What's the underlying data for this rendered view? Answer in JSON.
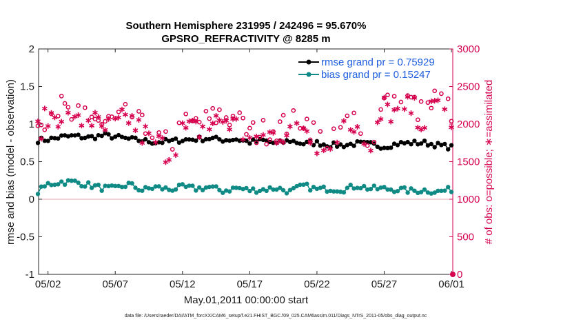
{
  "chart_data": {
    "type": "line",
    "title_line1": "Southern Hemisphere 231995 / 242496 = 95.670%",
    "title_line2": "GPSRO_REFRACTIVITY @ 8285 m",
    "xlabel": "May.01,2011 00:00:00 start",
    "ylabel_left": "rmse and bias (model - observation)",
    "ylabel_right": "# of obs: o=possible; ∗=assimilated",
    "ylim_left": [
      -1,
      2
    ],
    "ylim_right": [
      0,
      3000
    ],
    "xlim_days": [
      0.3,
      31.1
    ],
    "x_ticks": [
      {
        "day": 1.0,
        "label": "05/02"
      },
      {
        "day": 6.0,
        "label": "05/07"
      },
      {
        "day": 11.0,
        "label": "05/12"
      },
      {
        "day": 16.0,
        "label": "05/17"
      },
      {
        "day": 21.0,
        "label": "05/22"
      },
      {
        "day": 26.0,
        "label": "05/27"
      },
      {
        "day": 31.0,
        "label": "06/01"
      }
    ],
    "y_ticks_left": [
      {
        "v": 2,
        "label": "2"
      },
      {
        "v": 1.5,
        "label": "1.5"
      },
      {
        "v": 1,
        "label": "1"
      },
      {
        "v": 0.5,
        "label": "0.5"
      },
      {
        "v": 0,
        "label": "0"
      },
      {
        "v": -0.5,
        "label": "-0.5"
      },
      {
        "v": -1,
        "label": "-1"
      }
    ],
    "y_ticks_right": [
      {
        "v": 3000,
        "label": "3000"
      },
      {
        "v": 2500,
        "label": "2500"
      },
      {
        "v": 2000,
        "label": "2000"
      },
      {
        "v": 1500,
        "label": "1500"
      },
      {
        "v": 1000,
        "label": "1000"
      },
      {
        "v": 500,
        "label": "500"
      },
      {
        "v": 0,
        "label": "0"
      }
    ],
    "legend": [
      {
        "name": "rmse grand pr = 0.75929",
        "color": "#000000"
      },
      {
        "name": "bias grand pr = 0.15247",
        "color": "#0f8a85"
      }
    ],
    "series": [
      {
        "name": "rmse",
        "axis": "left",
        "color": "#000000",
        "anchors": [
          [
            0,
            0.78
          ],
          [
            1.2,
            0.8
          ],
          [
            2,
            0.83
          ],
          [
            3,
            0.84
          ],
          [
            4,
            0.82
          ],
          [
            5.2,
            0.85
          ],
          [
            6,
            0.83
          ],
          [
            7,
            0.8
          ],
          [
            8,
            0.78
          ],
          [
            9,
            0.76
          ],
          [
            10,
            0.77
          ],
          [
            11,
            0.79
          ],
          [
            12,
            0.8
          ],
          [
            13,
            0.81
          ],
          [
            14,
            0.79
          ],
          [
            15,
            0.8
          ],
          [
            16,
            0.76
          ],
          [
            17,
            0.78
          ],
          [
            18,
            0.74
          ],
          [
            19,
            0.78
          ],
          [
            20,
            0.74
          ],
          [
            21,
            0.75
          ],
          [
            22,
            0.72
          ],
          [
            23,
            0.72
          ],
          [
            24,
            0.74
          ],
          [
            25,
            0.73
          ],
          [
            26,
            0.7
          ],
          [
            27,
            0.74
          ],
          [
            28,
            0.75
          ],
          [
            29,
            0.75
          ],
          [
            30,
            0.72
          ],
          [
            31,
            0.69
          ]
        ]
      },
      {
        "name": "bias",
        "axis": "left",
        "color": "#0f8a85",
        "anchors": [
          [
            0,
            0.06
          ],
          [
            1,
            0.2
          ],
          [
            2,
            0.23
          ],
          [
            3,
            0.23
          ],
          [
            4,
            0.19
          ],
          [
            5,
            0.15
          ],
          [
            6,
            0.14
          ],
          [
            7,
            0.2
          ],
          [
            8,
            0.12
          ],
          [
            9,
            0.16
          ],
          [
            10,
            0.13
          ],
          [
            11,
            0.16
          ],
          [
            12,
            0.14
          ],
          [
            13,
            0.16
          ],
          [
            14,
            0.11
          ],
          [
            15,
            0.15
          ],
          [
            16,
            0.12
          ],
          [
            17,
            0.13
          ],
          [
            18,
            0.15
          ],
          [
            19,
            0.1
          ],
          [
            20,
            0.18
          ],
          [
            21,
            0.13
          ],
          [
            22,
            0.14
          ],
          [
            23,
            0.13
          ],
          [
            24,
            0.18
          ],
          [
            25,
            0.14
          ],
          [
            26,
            0.14
          ],
          [
            27,
            0.13
          ],
          [
            28,
            0.11
          ],
          [
            29,
            0.12
          ],
          [
            30,
            0.1
          ],
          [
            31,
            0.13
          ]
        ]
      },
      {
        "name": "obs possible (o)",
        "axis": "right",
        "color": "#d6004f",
        "anchors": [
          [
            0,
            1960
          ],
          [
            1,
            2150
          ],
          [
            2,
            2220
          ],
          [
            3,
            2040
          ],
          [
            4,
            2200
          ],
          [
            5,
            2000
          ],
          [
            6,
            2050
          ],
          [
            7,
            2170
          ],
          [
            8,
            1950
          ],
          [
            9,
            1850
          ],
          [
            10,
            1700
          ],
          [
            11,
            1980
          ],
          [
            12,
            2000
          ],
          [
            13,
            2050
          ],
          [
            14,
            2150
          ],
          [
            15,
            2050
          ],
          [
            16,
            1880
          ],
          [
            17,
            1900
          ],
          [
            18,
            1950
          ],
          [
            19,
            2000
          ],
          [
            20,
            2080
          ],
          [
            21,
            1850
          ],
          [
            22,
            1700
          ],
          [
            23,
            2000
          ],
          [
            24,
            2150
          ],
          [
            25,
            1700
          ],
          [
            26,
            2300
          ],
          [
            27,
            2200
          ],
          [
            28,
            2300
          ],
          [
            29,
            2100
          ],
          [
            30,
            2380
          ],
          [
            31,
            2150
          ]
        ]
      },
      {
        "name": "obs assimilated (∗)",
        "axis": "right",
        "color": "#d6004f",
        "anchors": [
          [
            0,
            1880
          ],
          [
            1,
            2080
          ],
          [
            2,
            2150
          ],
          [
            3,
            1970
          ],
          [
            4,
            2120
          ],
          [
            5,
            1910
          ],
          [
            6,
            1960
          ],
          [
            7,
            2090
          ],
          [
            8,
            1870
          ],
          [
            9,
            1770
          ],
          [
            10,
            1620
          ],
          [
            11,
            1900
          ],
          [
            12,
            1920
          ],
          [
            13,
            1970
          ],
          [
            14,
            2070
          ],
          [
            15,
            1970
          ],
          [
            16,
            1800
          ],
          [
            17,
            1820
          ],
          [
            18,
            1870
          ],
          [
            19,
            1920
          ],
          [
            20,
            2000
          ],
          [
            21,
            1770
          ],
          [
            22,
            1620
          ],
          [
            23,
            1920
          ],
          [
            24,
            2070
          ],
          [
            25,
            1620
          ],
          [
            26,
            2220
          ],
          [
            27,
            2120
          ],
          [
            28,
            2220
          ],
          [
            29,
            2020
          ],
          [
            30,
            2300
          ],
          [
            31,
            2070
          ]
        ]
      }
    ]
  },
  "footer": "data file: /Users/raeder/DAI/ATM_forcXX/CAM6_setup/f.e21.FHIST_BGC.f09_025.CAM6assim.011/Diags_NTrS_2011-05/obs_diag_output.nc"
}
